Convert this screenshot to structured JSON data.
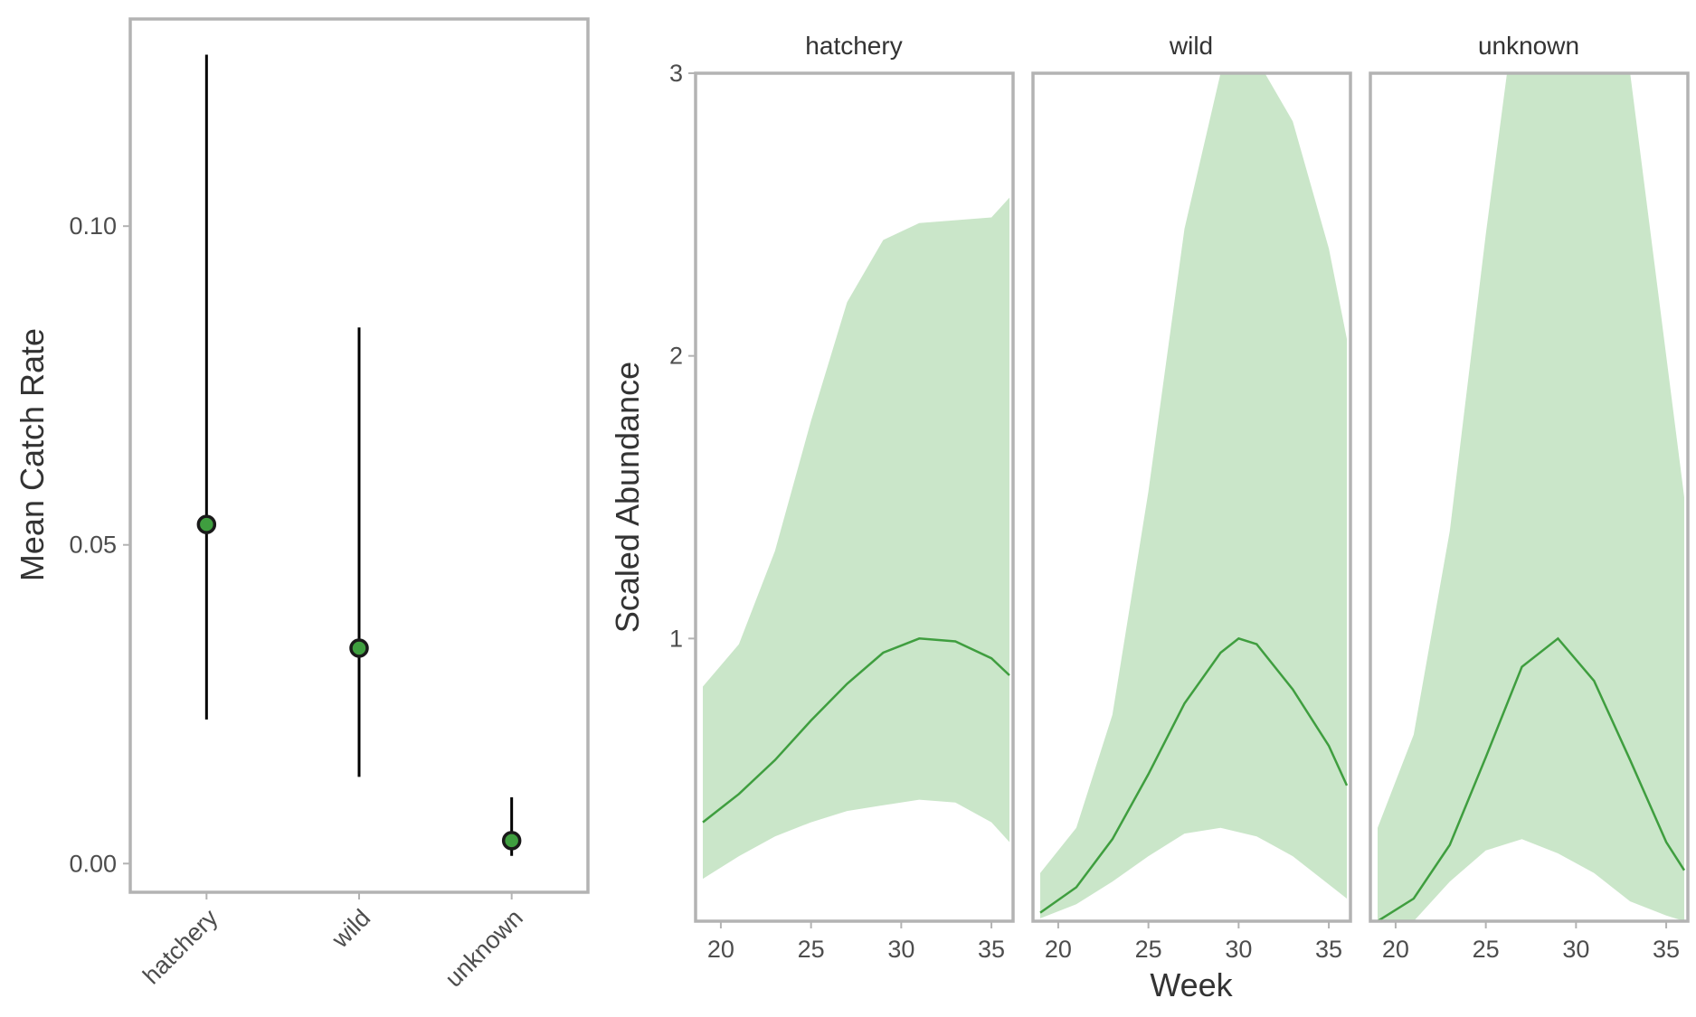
{
  "chart_data": [
    {
      "type": "scatter",
      "title": "",
      "xlabel": "",
      "ylabel": "Mean Catch Rate",
      "categories": [
        "hatchery",
        "wild",
        "unknown"
      ],
      "values": [
        0.0532,
        0.0338,
        0.0036
      ],
      "lower": [
        0.0226,
        0.0136,
        0.0012
      ],
      "upper": [
        0.1269,
        0.0841,
        0.0104
      ],
      "ylim": [
        -0.0045,
        0.1325
      ],
      "yticks": [
        0.0,
        0.05,
        0.1
      ],
      "ytick_labels": [
        "0.00",
        "0.05",
        "0.10"
      ],
      "grid": false,
      "point_color": "#3f9e3f",
      "point_edge": "#1a1a1a",
      "errorbar_color": "#000000"
    },
    {
      "type": "area",
      "title": "",
      "xlabel": "Week",
      "ylabel": "Scaled Abundance",
      "x": [
        19,
        21,
        23,
        25,
        27,
        29,
        31,
        33,
        35,
        36
      ],
      "xlim": [
        18.6,
        36.2
      ],
      "xticks": [
        20,
        25,
        30,
        35
      ],
      "xtick_labels": [
        "20",
        "25",
        "30",
        "35"
      ],
      "ylim": [
        0.0,
        3.0
      ],
      "yticks": [
        1,
        2,
        3
      ],
      "ytick_labels": [
        "1",
        "2",
        "3"
      ],
      "grid": false,
      "line_color": "#3f9e3f",
      "band_color": "#cae6c9",
      "panels": [
        {
          "name": "hatchery",
          "mean": [
            0.35,
            0.45,
            0.57,
            0.71,
            0.84,
            0.95,
            1.0,
            0.99,
            0.93,
            0.87
          ],
          "lower": [
            0.15,
            0.23,
            0.3,
            0.35,
            0.39,
            0.41,
            0.43,
            0.42,
            0.35,
            0.28
          ],
          "upper": [
            0.83,
            0.98,
            1.31,
            1.77,
            2.19,
            2.41,
            2.47,
            2.48,
            2.49,
            2.56
          ]
        },
        {
          "name": "wild",
          "mean": [
            0.05,
            0.13,
            0.28,
            0.5,
            0.76,
            0.96,
            0.99,
            0.86,
            0.62,
            0.48
          ],
          "lower": [
            0.01,
            0.06,
            0.14,
            0.23,
            0.31,
            0.33,
            0.3,
            0.23,
            0.13,
            0.08
          ],
          "upper": [
            0.17,
            0.33,
            0.73,
            1.52,
            2.45,
            3.0,
            3.05,
            2.83,
            2.38,
            2.06
          ],
          "line_x": [
            19,
            21,
            23,
            25,
            27,
            29,
            30,
            31,
            33,
            35,
            36
          ],
          "line_y": [
            0.03,
            0.12,
            0.29,
            0.52,
            0.77,
            0.95,
            1.0,
            0.98,
            0.82,
            0.62,
            0.48
          ]
        },
        {
          "name": "unknown",
          "mean": [
            0.0,
            0.08,
            0.27,
            0.58,
            0.9,
            1.0,
            0.85,
            0.57,
            0.28,
            0.18
          ],
          "lower": [
            0.0,
            0.0,
            0.14,
            0.25,
            0.29,
            0.24,
            0.17,
            0.07,
            0.02,
            0.0
          ],
          "upper": [
            0.33,
            0.66,
            1.38,
            2.43,
            3.4,
            3.8,
            3.6,
            3.0,
            2.0,
            1.5
          ]
        }
      ]
    }
  ]
}
